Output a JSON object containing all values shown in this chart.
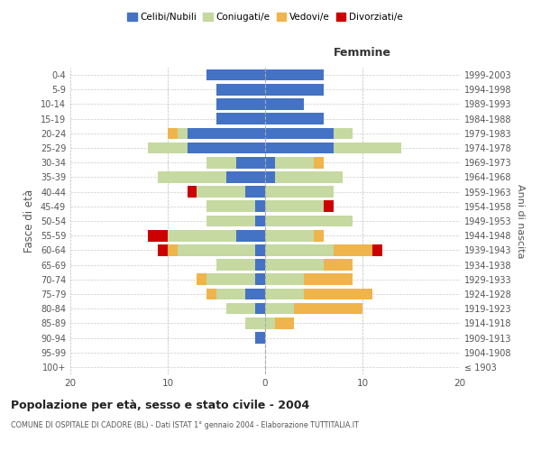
{
  "age_groups": [
    "100+",
    "95-99",
    "90-94",
    "85-89",
    "80-84",
    "75-79",
    "70-74",
    "65-69",
    "60-64",
    "55-59",
    "50-54",
    "45-49",
    "40-44",
    "35-39",
    "30-34",
    "25-29",
    "20-24",
    "15-19",
    "10-14",
    "5-9",
    "0-4"
  ],
  "birth_years": [
    "≤ 1903",
    "1904-1908",
    "1909-1913",
    "1914-1918",
    "1919-1923",
    "1924-1928",
    "1929-1933",
    "1934-1938",
    "1939-1943",
    "1944-1948",
    "1949-1953",
    "1954-1958",
    "1959-1963",
    "1964-1968",
    "1969-1973",
    "1974-1978",
    "1979-1983",
    "1984-1988",
    "1989-1993",
    "1994-1998",
    "1999-2003"
  ],
  "males": {
    "celibi": [
      0,
      0,
      1,
      0,
      1,
      2,
      1,
      1,
      1,
      3,
      1,
      1,
      2,
      4,
      3,
      8,
      8,
      5,
      5,
      5,
      6
    ],
    "coniugati": [
      0,
      0,
      0,
      2,
      3,
      3,
      5,
      4,
      8,
      7,
      5,
      5,
      5,
      7,
      3,
      4,
      1,
      0,
      0,
      0,
      0
    ],
    "vedovi": [
      0,
      0,
      0,
      0,
      0,
      1,
      1,
      0,
      1,
      0,
      0,
      0,
      0,
      0,
      0,
      0,
      1,
      0,
      0,
      0,
      0
    ],
    "divorziati": [
      0,
      0,
      0,
      0,
      0,
      0,
      0,
      0,
      1,
      2,
      0,
      0,
      1,
      0,
      0,
      0,
      0,
      0,
      0,
      0,
      0
    ]
  },
  "females": {
    "nubili": [
      0,
      0,
      0,
      0,
      0,
      0,
      0,
      0,
      0,
      0,
      0,
      0,
      0,
      1,
      1,
      7,
      7,
      6,
      4,
      6,
      6
    ],
    "coniugate": [
      0,
      0,
      0,
      1,
      3,
      4,
      4,
      6,
      7,
      5,
      9,
      6,
      7,
      7,
      4,
      7,
      2,
      0,
      0,
      0,
      0
    ],
    "vedove": [
      0,
      0,
      0,
      2,
      7,
      7,
      5,
      3,
      4,
      1,
      0,
      0,
      0,
      0,
      1,
      0,
      0,
      0,
      0,
      0,
      0
    ],
    "divorziate": [
      0,
      0,
      0,
      0,
      0,
      0,
      0,
      0,
      1,
      0,
      0,
      1,
      0,
      0,
      0,
      0,
      0,
      0,
      0,
      0,
      0
    ]
  },
  "colors": {
    "celibi_nubili": "#4472C4",
    "coniugati": "#C5D9A0",
    "vedovi": "#F0B44C",
    "divorziati": "#CC0000"
  },
  "xlim": 20,
  "title": "Popolazione per età, sesso e stato civile - 2004",
  "subtitle": "COMUNE DI OSPITALE DI CADORE (BL) - Dati ISTAT 1° gennaio 2004 - Elaborazione TUTTITALIA.IT",
  "ylabel": "Fasce di età",
  "ylabel_right": "Anni di nascita",
  "legend_labels": [
    "Celibi/Nubili",
    "Coniugati/e",
    "Vedovi/e",
    "Divorziati/e"
  ],
  "femmine_label": "Femmine",
  "bg_color": "#ffffff",
  "grid_color": "#cccccc",
  "text_color": "#555555"
}
